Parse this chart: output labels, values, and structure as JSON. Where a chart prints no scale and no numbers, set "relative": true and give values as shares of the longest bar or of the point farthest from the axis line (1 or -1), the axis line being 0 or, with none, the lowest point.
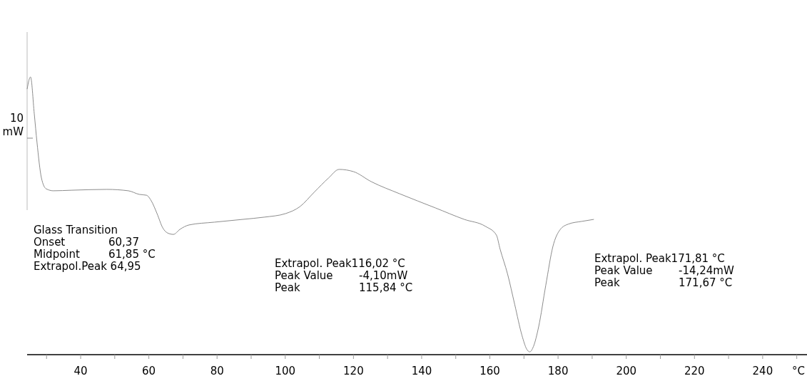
{
  "chart_data": {
    "type": "line",
    "relative": true,
    "xlabel": "°C",
    "ylabel": "10 mW",
    "xlim": [
      24.3,
      253
    ],
    "xticks": [
      {
        "value": 30,
        "label": null
      },
      40,
      {
        "value": 50,
        "label": null
      },
      60,
      {
        "value": 70,
        "label": null
      },
      80,
      {
        "value": 90,
        "label": null
      },
      100,
      {
        "value": 110,
        "label": null
      },
      120,
      {
        "value": 130,
        "label": null
      },
      140,
      {
        "value": 150,
        "label": null
      },
      160,
      {
        "value": 170,
        "label": null
      },
      180,
      {
        "value": 190,
        "label": null
      },
      200,
      {
        "value": 210,
        "label": null
      },
      220,
      {
        "value": 230,
        "label": null
      },
      240,
      {
        "value": 250,
        "label": null
      }
    ],
    "series": [
      {
        "color": "#8c8c8c",
        "x": [
          24.3,
          25.3,
          26.4,
          27.2,
          28.5,
          29.9,
          32.0,
          37.3,
          47.7,
          54.0,
          57.2,
          59.3,
          60.7,
          62.4,
          64.1,
          65.5,
          67.2,
          69.1,
          71.8,
          79.2,
          87.5,
          93.8,
          100.1,
          104.3,
          108.5,
          112.7,
          115.8,
          120.0,
          125.2,
          133.6,
          144.1,
          152.5,
          158.7,
          161.9,
          163.0,
          165.2,
          167.3,
          169.4,
          170.8,
          171.7,
          172.8,
          174.3,
          176.4,
          178.5,
          180.6,
          183.0,
          187.0,
          190.5
        ],
        "values": [
          0.956,
          1,
          0.867,
          0.764,
          0.636,
          0.597,
          0.59,
          0.592,
          0.595,
          0.59,
          0.577,
          0.574,
          0.554,
          0.508,
          0.456,
          0.438,
          0.433,
          0.451,
          0.467,
          0.477,
          0.487,
          0.495,
          0.508,
          0.533,
          0.585,
          0.636,
          0.667,
          0.659,
          0.623,
          0.579,
          0.528,
          0.487,
          0.462,
          0.431,
          0.38,
          0.29,
          0.18,
          0.07,
          0.02,
          0.01,
          0.03,
          0.1,
          0.25,
          0.39,
          0.45,
          0.47,
          0.48,
          0.487
        ]
      }
    ],
    "annotations": [
      "Glass Transition",
      "Onset\t60,37",
      "Midpoint\t61,85 °C",
      "Extrapol.Peak 64,95",
      "Extrapol. Peak116,02 °C",
      "Peak Value\t-4,10mW",
      "Peak\t115,84 °C",
      "Extrapol. Peak171,81 °C",
      "Peak Value\t-14,24mW",
      "Peak\t171,67 °C"
    ]
  }
}
